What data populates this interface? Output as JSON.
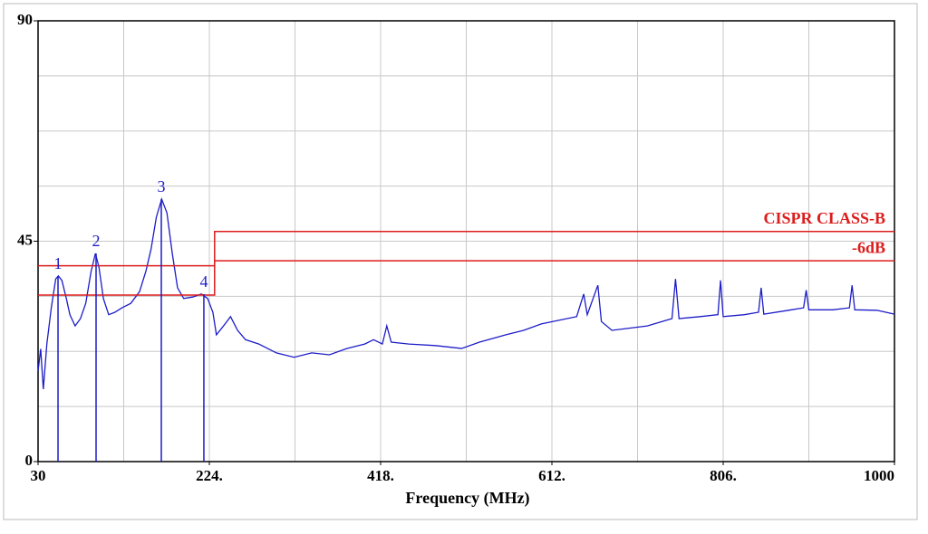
{
  "chart_data": {
    "type": "line",
    "x_label": "Frequency (MHz)",
    "xlim": [
      30,
      1000
    ],
    "ylim": [
      0,
      90
    ],
    "xticks": [
      30,
      {
        "value": 224,
        "label": "224."
      },
      {
        "value": 418,
        "label": "418."
      },
      {
        "value": 612,
        "label": "612."
      },
      {
        "value": 806,
        "label": "806."
      },
      1000
    ],
    "yticks": [
      0,
      45,
      90
    ],
    "grid": {
      "x_divisions": 10,
      "y_divisions": 8
    },
    "series": [
      {
        "color": "#1c1cc8",
        "x": [
          30,
          33,
          36,
          40,
          45,
          50,
          53,
          57,
          62,
          66,
          72,
          78,
          84,
          90,
          95,
          99,
          104,
          110,
          117,
          125,
          135,
          145,
          152,
          158,
          164,
          170,
          176,
          182,
          188,
          195,
          205,
          215,
          222,
          228,
          232,
          240,
          248,
          256,
          265,
          280,
          300,
          320,
          340,
          360,
          380,
          400,
          410,
          420,
          425,
          430,
          450,
          480,
          510,
          530,
          560,
          580,
          600,
          640,
          648,
          652,
          664,
          668,
          680,
          720,
          748,
          752,
          756,
          780,
          800,
          803,
          806,
          830,
          846,
          849,
          852,
          880,
          897,
          900,
          903,
          930,
          949,
          952,
          955,
          980,
          1000
        ],
        "values": [
          18.5,
          23,
          14.8,
          24,
          31.4,
          37.3,
          37.9,
          37,
          33.3,
          30,
          27.7,
          29.2,
          32.3,
          38.8,
          42.5,
          39.7,
          33.3,
          30,
          30.5,
          31.4,
          32.3,
          34.7,
          38.8,
          43.4,
          49.9,
          53.6,
          50.8,
          42.5,
          35.5,
          33.3,
          33.6,
          34.2,
          33.3,
          30.5,
          25.9,
          27.7,
          29.6,
          26.8,
          24.9,
          24,
          22.2,
          21.3,
          22.2,
          21.8,
          23.1,
          24,
          24.9,
          24,
          27.7,
          24.4,
          24,
          23.7,
          23.1,
          24.4,
          25.9,
          26.8,
          28.1,
          29.6,
          34.2,
          30,
          36,
          28.6,
          26.8,
          27.7,
          29.2,
          37.3,
          29.2,
          29.6,
          30,
          37,
          29.6,
          30,
          30.5,
          35.5,
          30.1,
          30.9,
          31.4,
          35,
          31,
          31,
          31.4,
          36,
          31,
          30.9,
          30.1
        ]
      },
      {
        "name": "CISPR CLASS-B",
        "color": "#dd1c1c",
        "x": [
          30,
          230,
          230,
          1000
        ],
        "values": [
          40,
          40,
          47,
          47
        ]
      },
      {
        "name": "-6dB",
        "color": "#dd1c1c",
        "x": [
          30,
          230,
          230,
          1000
        ],
        "values": [
          34,
          34,
          41,
          41
        ]
      }
    ],
    "markers": [
      {
        "label": "1",
        "x": 52.6,
        "value": 37.9
      },
      {
        "label": "2",
        "x": 95.7,
        "value": 42.5
      },
      {
        "label": "3",
        "x": 169.6,
        "value": 53.6
      },
      {
        "label": "4",
        "x": 217.8,
        "value": 34.2
      }
    ]
  }
}
